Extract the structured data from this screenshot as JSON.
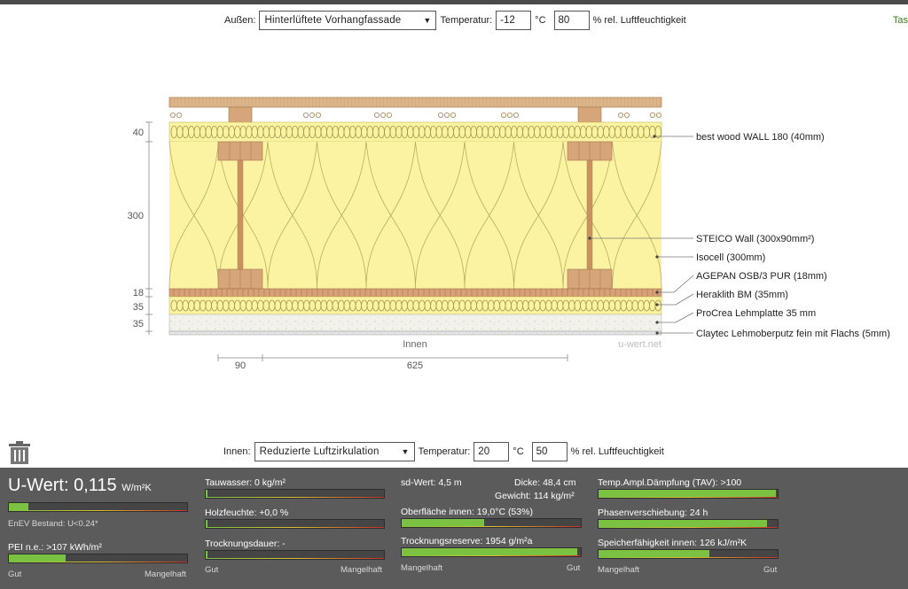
{
  "top_controls": {
    "outside_label": "Außen:",
    "outside_option": "Hinterlüftete Vorhangfassade",
    "temp_label": "Temperatur:",
    "temp_value": "-12",
    "temp_unit": "°C",
    "humidity_value": "80",
    "humidity_label": "% rel. Luftfeuchtigkeit",
    "cut_link": "Tas"
  },
  "diagram": {
    "dims_left": [
      "40",
      "300",
      "18",
      "35",
      "35"
    ],
    "dims_bottom": [
      "90",
      "625"
    ],
    "inside_label": "Innen",
    "watermark": "u-wert.net",
    "layers": [
      "best wood WALL 180 (40mm)",
      "STEICO  Wall (300x90mm²)",
      "Isocell (300mm)",
      "AGEPAN OSB/3 PUR (18mm)",
      "Heraklith BM (35mm)",
      "ProCrea Lehmplatte 35 mm",
      "Claytec Lehmoberputz fein mit Flachs (5mm)"
    ]
  },
  "bottom_controls": {
    "inside_label": "Innen:",
    "inside_option": "Reduzierte Luftzirkulation",
    "temp_label": "Temperatur:",
    "temp_value": "20",
    "temp_unit": "°C",
    "humidity_value": "50",
    "humidity_label": "% rel. Luftfeuchtigkeit"
  },
  "results": {
    "u_label": "U-Wert:",
    "u_value": "0,115",
    "u_unit": "W/m²K",
    "u_level": 0.11,
    "enev": "EnEV Bestand: U<0.24*",
    "pei": "PEI n.e.: >107 kWh/m²",
    "pei_level": 0.32,
    "tauwasser": "Tauwasser: 0 kg/m²",
    "tauwasser_level": 0.01,
    "holzfeuchte": "Holzfeuchte: +0,0 %",
    "holzfeuchte_level": 0.01,
    "trocknungsdauer": "Trocknungsdauer: -",
    "trocknungsdauer_level": 0.01,
    "sd": "sd-Wert: 4,5 m",
    "dicke": "Dicke: 48,4 cm",
    "gewicht": "Gewicht: 114 kg/m²",
    "oberflaeche": "Oberfläche innen: 19,0°C (53%)",
    "oberflaeche_level": 0.46,
    "reserve": "Trocknungsreserve: 1954 g/m²a",
    "reserve_level": 0.98,
    "tav": "Temp.Ampl.Dämpfung (TAV): >100",
    "tav_level": 0.99,
    "phase": "Phasenverschiebung: 24 h",
    "phase_level": 0.94,
    "speicher": "Speicherfähigkeit innen: 126 kJ/m²K",
    "speicher_level": 0.62,
    "scale_good": "Gut",
    "scale_bad": "Mangelhaft"
  }
}
